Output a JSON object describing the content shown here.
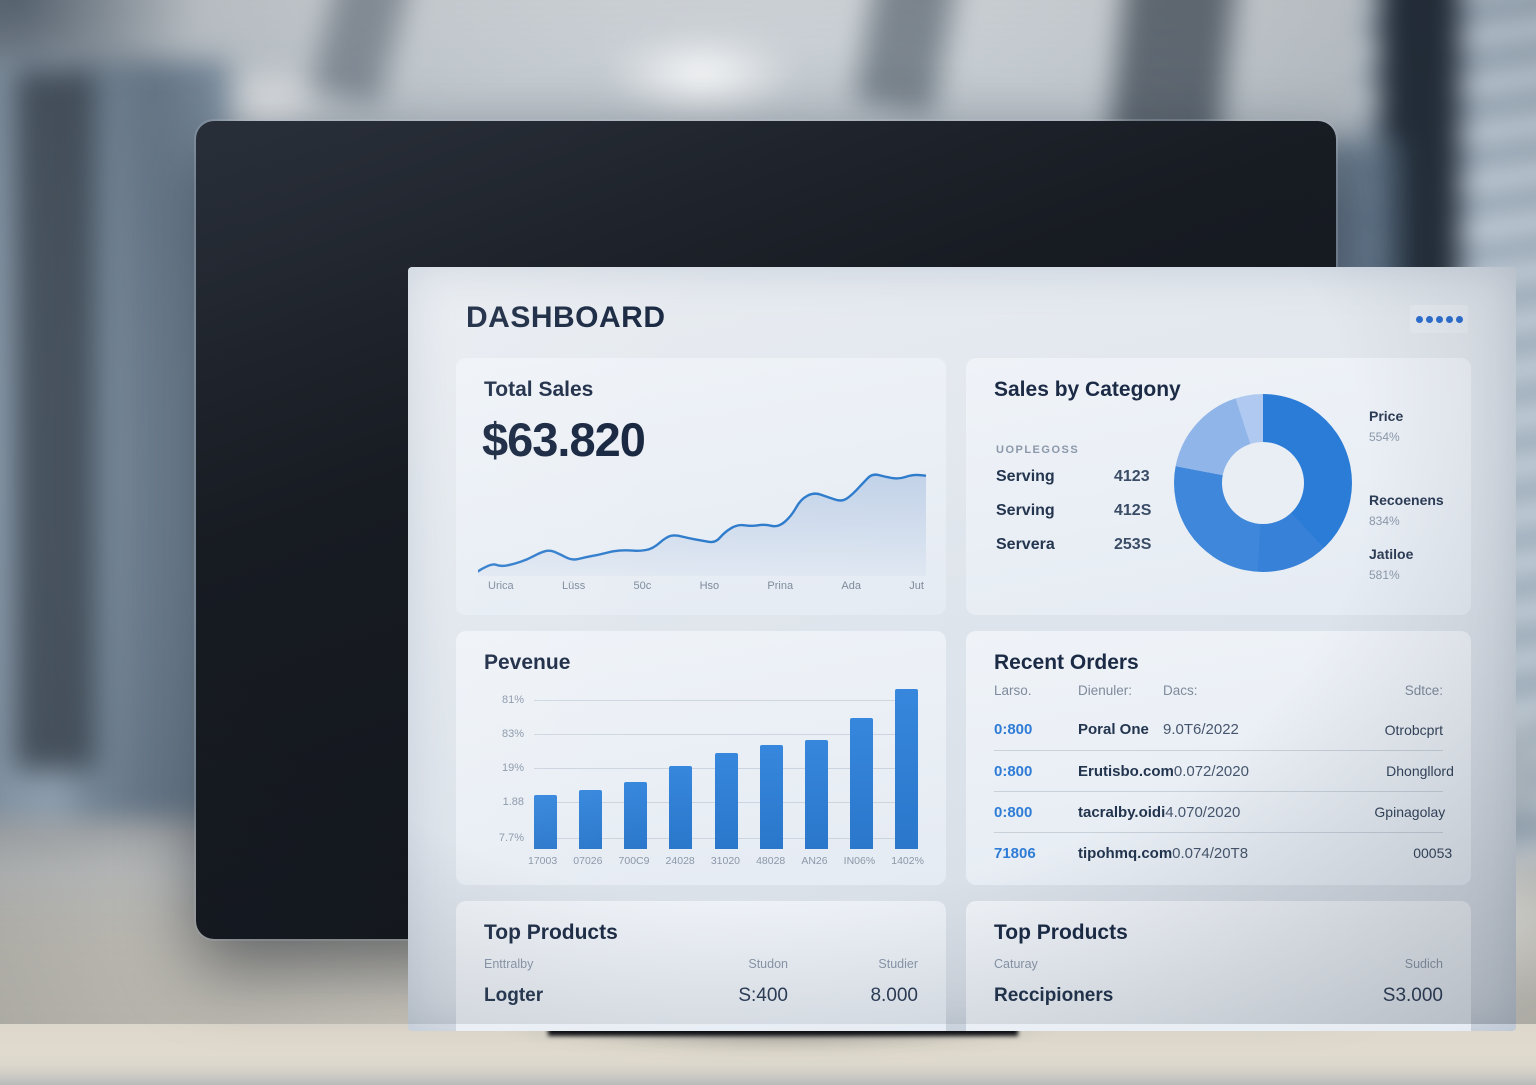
{
  "header": {
    "title": "DASHBOARD",
    "menu_dots": 5
  },
  "colors": {
    "accent_blue": "#2e7cd6",
    "bar_blue": "#2e7fd4",
    "line_blue": "#2f7ccc",
    "text_dark": "#16253f",
    "text_gray": "#8b98aa"
  },
  "cards": {
    "total_sales": {
      "title": "Total Sales",
      "value": "$63.820"
    },
    "sales_by_category": {
      "title": "Sales by Categony",
      "list_header": "UOPLEGOSS",
      "items": [
        {
          "label": "Serving",
          "value": "4123"
        },
        {
          "label": "Serving",
          "value": "412S"
        },
        {
          "label": "Servera",
          "value": "253S"
        }
      ],
      "legend": [
        {
          "label": "Price",
          "value": "554%"
        },
        {
          "label": "Recoenens",
          "value": "834%"
        },
        {
          "label": "Jatiloe",
          "value": "581%"
        }
      ]
    },
    "revenue": {
      "title": "Pevenue"
    },
    "recent_orders": {
      "title": "Recent Orders",
      "columns": [
        "Larso.",
        "Dienuler:",
        "Dacs:",
        "Sdtce:"
      ],
      "rows": [
        {
          "id": "0:800",
          "name": "Poral One",
          "date": "9.0T6/2022",
          "status": "Otrobcprt"
        },
        {
          "id": "0:800",
          "name": "Erutisbo.com",
          "date": "0.072/2020",
          "status": "Dhongllord"
        },
        {
          "id": "0:800",
          "name": "tacralby.oidi",
          "date": "4.070/2020",
          "status": "Gpinagolay"
        },
        {
          "id": "71806",
          "name": "tipohmq.com",
          "date": "0.074/20T8",
          "status": "00053"
        }
      ]
    },
    "top_products_left": {
      "title": "Top Products",
      "columns": [
        "Enttralby",
        "Studon",
        "Studier"
      ],
      "row": {
        "name": "Logter",
        "col1": "S:400",
        "col2": "8.000"
      }
    },
    "top_products_right": {
      "title": "Top Products",
      "columns": [
        "Caturay",
        "Sudich"
      ],
      "row": {
        "name": "Reccipioners",
        "value": "S3.000"
      }
    }
  },
  "chart_data": [
    {
      "type": "area",
      "title": "Total Sales",
      "value_label": "$63.820",
      "x_labels": [
        "Urica",
        "Lüss",
        "50c",
        "Hso",
        "Prina",
        "Ada",
        "Jut"
      ],
      "ylim": [
        0,
        100
      ],
      "points": [
        [
          0,
          96
        ],
        [
          3,
          89
        ],
        [
          5,
          92
        ],
        [
          8,
          90
        ],
        [
          11,
          86
        ],
        [
          14,
          80
        ],
        [
          16,
          78
        ],
        [
          18,
          81
        ],
        [
          21,
          87
        ],
        [
          24,
          84
        ],
        [
          27,
          82
        ],
        [
          30,
          79
        ],
        [
          33,
          78
        ],
        [
          36,
          79
        ],
        [
          39,
          77
        ],
        [
          42,
          67
        ],
        [
          44,
          65
        ],
        [
          47,
          68
        ],
        [
          50,
          70
        ],
        [
          53,
          72
        ],
        [
          55,
          63
        ],
        [
          58,
          56
        ],
        [
          61,
          58
        ],
        [
          64,
          56
        ],
        [
          67,
          59
        ],
        [
          70,
          49
        ],
        [
          72,
          35
        ],
        [
          75,
          29
        ],
        [
          78,
          33
        ],
        [
          81,
          37
        ],
        [
          83,
          33
        ],
        [
          86,
          21
        ],
        [
          88,
          13
        ],
        [
          91,
          16
        ],
        [
          94,
          18
        ],
        [
          97,
          14
        ],
        [
          100,
          15
        ]
      ]
    },
    {
      "type": "pie",
      "title": "Sales by Categony",
      "donut": true,
      "segments": [
        {
          "color": "#2b7cd7",
          "pct": 38
        },
        {
          "color": "#3781d8",
          "pct": 13
        },
        {
          "color": "#3f87db",
          "pct": 27
        },
        {
          "color": "#8fb5e9",
          "pct": 17
        },
        {
          "color": "#b0c9f0",
          "pct": 5
        }
      ]
    },
    {
      "type": "bar",
      "title": "Pevenue",
      "categories": [
        "17003",
        "07026",
        "700C9",
        "24028",
        "31020",
        "48028",
        "AN26",
        "IN06%",
        "1402%"
      ],
      "values": [
        34,
        37,
        42,
        52,
        60,
        65,
        68,
        82,
        100
      ],
      "ylim": [
        0,
        100
      ],
      "y_tick_labels": [
        "81%",
        "83%",
        "19%",
        "1.88",
        "7.7%"
      ],
      "grid": true
    }
  ]
}
